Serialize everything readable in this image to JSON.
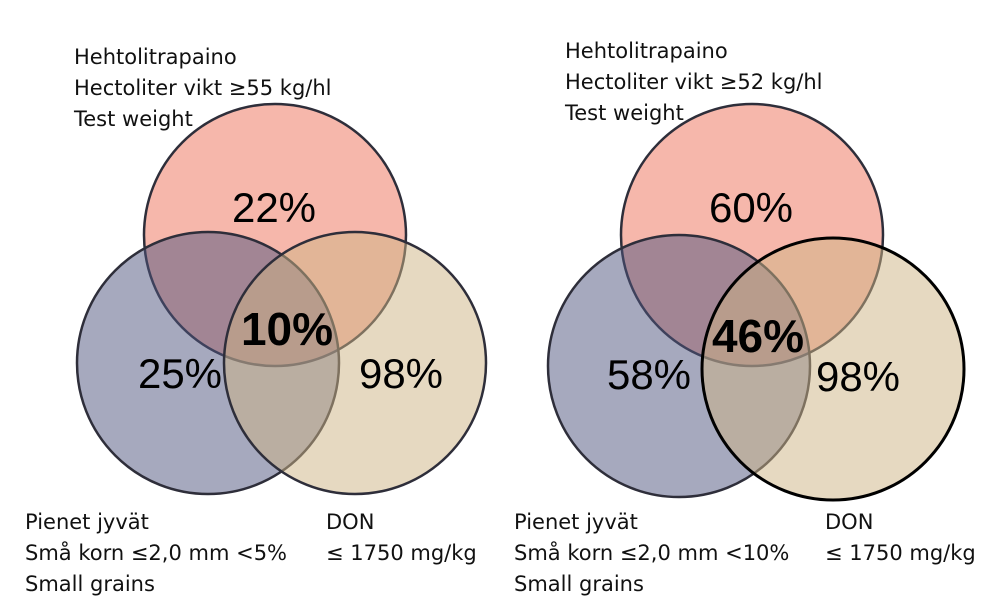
{
  "colors": {
    "test_weight": "#f08a78",
    "small_grains": "#4e547e",
    "don": "#cdb483",
    "stroke": "#2e2e3a"
  },
  "diagrams": [
    {
      "top_label": [
        "Hehtolitrapaino",
        "Hectoliter vikt  ≥55 kg/hl",
        "Test weight"
      ],
      "left_label": [
        "Pienet jyvät",
        "Små korn ≤2,0 mm <5%",
        "Small grains"
      ],
      "right_label": [
        "DON",
        "≤ 1750 mg/kg"
      ],
      "values": {
        "top": "22%",
        "left": "25%",
        "right": "98%",
        "center": "10%"
      }
    },
    {
      "top_label": [
        "Hehtolitrapaino",
        "Hectoliter vikt ≥52 kg/hl",
        "Test weight"
      ],
      "left_label": [
        "Pienet jyvät",
        "Små korn  ≤2,0 mm <10%",
        "Small grains"
      ],
      "right_label": [
        "DON",
        "≤ 1750 mg/kg"
      ],
      "values": {
        "top": "60%",
        "left": "58%",
        "right": "98%",
        "center": "46%"
      }
    }
  ]
}
